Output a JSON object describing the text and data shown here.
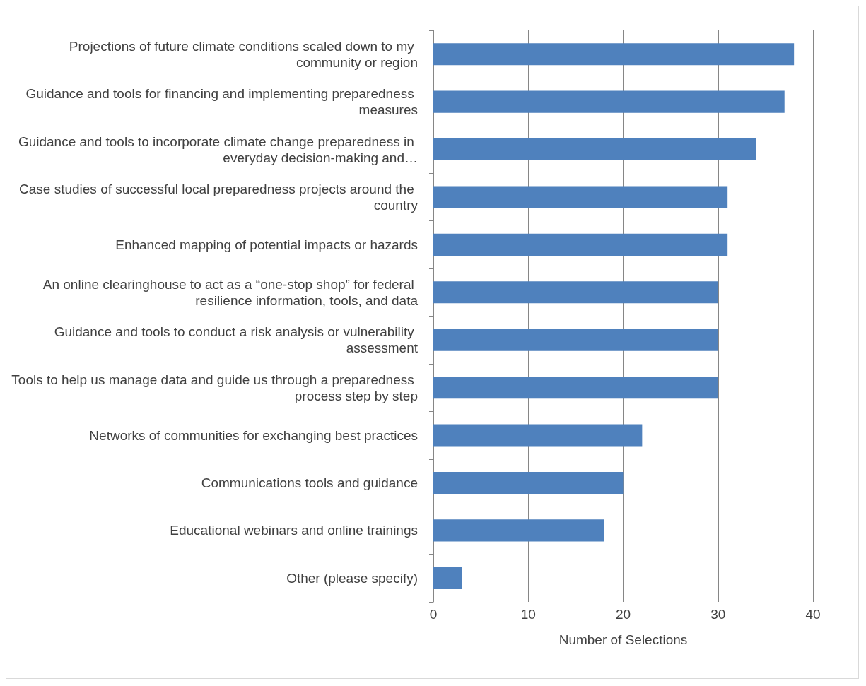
{
  "chart_data": {
    "type": "bar",
    "orientation": "horizontal",
    "xlabel": "Number of Selections",
    "categories": [
      "Projections of future climate conditions scaled down to my community or region",
      "Guidance and tools for financing and implementing preparedness measures",
      "Guidance and tools to incorporate climate change preparedness in everyday decision-making and…",
      "Case studies of successful local preparedness projects around the country",
      "Enhanced mapping of potential impacts or hazards",
      "An online clearinghouse to act as a “one-stop shop” for federal resilience information, tools, and data",
      "Guidance and tools to conduct a risk analysis or vulnerability assessment",
      "Tools to help us manage data and guide us through a preparedness process step by step",
      "Networks of communities for exchanging best practices",
      "Communications tools and guidance",
      "Educational webinars and online trainings",
      "Other (please specify)"
    ],
    "values": [
      38,
      37,
      34,
      31,
      31,
      30,
      30,
      30,
      22,
      20,
      18,
      3
    ],
    "color": "#4f81bd",
    "xlim": [
      0,
      40
    ],
    "xticks": [
      0,
      10,
      20,
      30,
      40
    ],
    "grid": "x"
  }
}
